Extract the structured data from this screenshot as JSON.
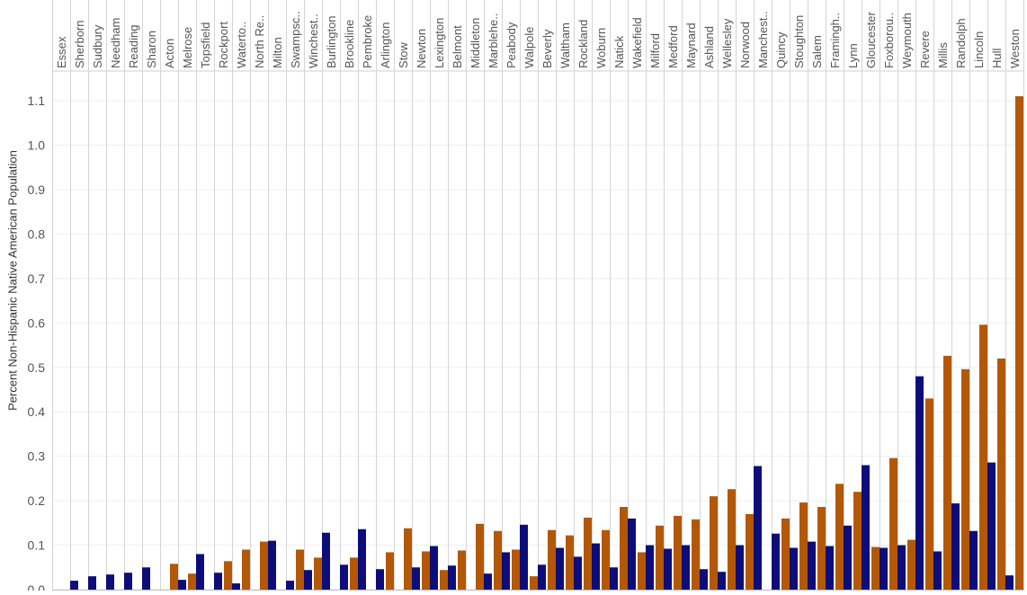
{
  "chart_data": {
    "type": "bar",
    "ylabel": "Percent Non-Hispanic Native American Population",
    "xlabel": "",
    "title": "",
    "ylim": [
      0,
      1.15
    ],
    "yticks": [
      "0.0",
      "0.1",
      "0.2",
      "0.3",
      "0.4",
      "0.5",
      "0.6",
      "0.7",
      "0.8",
      "0.9",
      "1.0",
      "1.1"
    ],
    "ytick_values": [
      0.0,
      0.1,
      0.2,
      0.3,
      0.4,
      0.5,
      0.6,
      0.7,
      0.8,
      0.9,
      1.0,
      1.1
    ],
    "grid": "horizontal",
    "categories": [
      "Essex",
      "Sherborn",
      "Sudbury",
      "Needham",
      "Reading",
      "Sharon",
      "Acton",
      "Melrose",
      "Topsfield",
      "Rockport",
      "Waterto..",
      "North Re..",
      "Milton",
      "Swampsc..",
      "Winchest..",
      "Burlington",
      "Brookline",
      "Pembroke",
      "Arlington",
      "Stow",
      "Newton",
      "Lexington",
      "Belmont",
      "Middleton",
      "Marblehe..",
      "Peabody",
      "Walpole",
      "Beverly",
      "Waltham",
      "Rockland",
      "Woburn",
      "Natick",
      "Wakefield",
      "Milford",
      "Medford",
      "Maynard",
      "Ashland",
      "Wellesley",
      "Norwood",
      "Manchest..",
      "Quincy",
      "Stoughton",
      "Salem",
      "Framingh..",
      "Lynn",
      "Gloucester",
      "Foxborou..",
      "Weymouth",
      "Revere",
      "Millis",
      "Randolph",
      "Lincoln",
      "Hull",
      "Weston"
    ],
    "series": [
      {
        "color": "#0d0d7a",
        "values": [
          0,
          0.02,
          0.03,
          0.034,
          0.038,
          0.05,
          0,
          0.022,
          0.08,
          0.038,
          0.014,
          0,
          0.11,
          0.02,
          0.044,
          0.128,
          0.056,
          0.136,
          0.046,
          0,
          0.05,
          0.098,
          0.054,
          0,
          0.036,
          0.084,
          0.146,
          0.056,
          0.094,
          0.074,
          0.104,
          0.05,
          0.16,
          0.1,
          0.092,
          0.1,
          0.046,
          0.04,
          0.1,
          0.278,
          0.126,
          0.094,
          0.108,
          0.098,
          0.144,
          0.28,
          0.094,
          0.1,
          0.48,
          0.086,
          0.194,
          0.132,
          0.286,
          0.032
        ]
      },
      {
        "color": "#b35806",
        "values": [
          0,
          0,
          0,
          0,
          0,
          0,
          0.058,
          0.036,
          0,
          0.064,
          0.09,
          0.108,
          0,
          0.09,
          0.072,
          0,
          0.072,
          0,
          0.084,
          0.138,
          0.086,
          0.044,
          0.088,
          0.148,
          0.132,
          0.09,
          0.03,
          0.134,
          0.122,
          0.162,
          0.134,
          0.186,
          0.084,
          0.144,
          0.166,
          0.158,
          0.21,
          0.226,
          0.17,
          0,
          0.16,
          0.196,
          0.186,
          0.238,
          0.22,
          0.096,
          0.296,
          0.112,
          0.43,
          0.526,
          0.496,
          0.596,
          0.52,
          1.11
        ]
      }
    ]
  }
}
